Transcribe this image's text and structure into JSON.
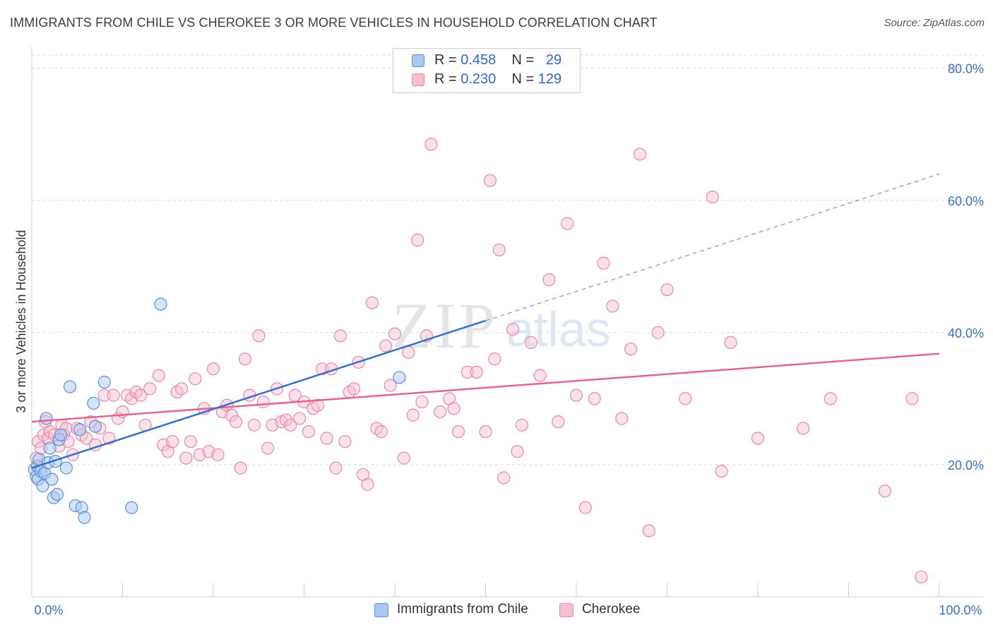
{
  "title": "IMMIGRANTS FROM CHILE VS CHEROKEE 3 OR MORE VEHICLES IN HOUSEHOLD CORRELATION CHART",
  "source": "Source: ZipAtlas.com",
  "watermark": {
    "zip": "ZIP",
    "atlas": "atlas"
  },
  "legend": {
    "r_label": "R =",
    "n_label": "N =",
    "rows": [
      {
        "r": "0.458",
        "n": "29"
      },
      {
        "r": "0.230",
        "n": "129"
      }
    ]
  },
  "colors": {
    "series1_fill": "#aac8f0",
    "series1_stroke": "#5b8fd6",
    "series1_line": "#3570cc",
    "series2_fill": "#f7bfd0",
    "series2_stroke": "#e88aa8",
    "series2_line": "#e0668e",
    "axis_value_text": "#3d6fc4",
    "grid": "#d8d8d8"
  },
  "chart_data": {
    "type": "scatter",
    "title": "IMMIGRANTS FROM CHILE VS CHEROKEE 3 OR MORE VEHICLES IN HOUSEHOLD CORRELATION CHART",
    "xlabel": "",
    "ylabel": "3 or more Vehicles in Household",
    "xlim": [
      0,
      100
    ],
    "ylim": [
      0,
      82
    ],
    "x_tick_labels": [
      "0.0%",
      "100.0%"
    ],
    "y_ticks": [
      20,
      40,
      60,
      80
    ],
    "y_tick_labels": [
      "20.0%",
      "40.0%",
      "60.0%",
      "80.0%"
    ],
    "grid": true,
    "legend_position": "top-center",
    "series": [
      {
        "name": "Immigrants from Chile",
        "r": 0.458,
        "n": 29,
        "trend": {
          "x0": 0,
          "y0": 19.5,
          "x1": 50,
          "y1": 41.8,
          "dashed_to_x": 100,
          "dashed_to_y": 64
        },
        "points": [
          [
            0.3,
            19.3
          ],
          [
            0.5,
            18.2
          ],
          [
            0.6,
            19.8
          ],
          [
            0.7,
            17.8
          ],
          [
            0.8,
            20.8
          ],
          [
            1.0,
            19.0
          ],
          [
            1.2,
            16.8
          ],
          [
            1.4,
            18.7
          ],
          [
            1.6,
            27.0
          ],
          [
            1.8,
            20.3
          ],
          [
            2.0,
            22.5
          ],
          [
            2.2,
            17.8
          ],
          [
            2.4,
            15.0
          ],
          [
            2.6,
            20.5
          ],
          [
            2.8,
            15.5
          ],
          [
            3.0,
            23.8
          ],
          [
            3.2,
            24.5
          ],
          [
            3.8,
            19.5
          ],
          [
            4.2,
            31.8
          ],
          [
            4.8,
            13.8
          ],
          [
            5.5,
            13.5
          ],
          [
            5.8,
            12.0
          ],
          [
            5.3,
            25.3
          ],
          [
            6.8,
            29.3
          ],
          [
            7.0,
            25.8
          ],
          [
            8.0,
            32.5
          ],
          [
            11.0,
            13.5
          ],
          [
            14.2,
            44.3
          ],
          [
            40.5,
            33.2
          ]
        ]
      },
      {
        "name": "Cherokee",
        "r": 0.23,
        "n": 129,
        "trend": {
          "x0": 0,
          "y0": 26.5,
          "x1": 100,
          "y1": 36.8
        },
        "points": [
          [
            0.5,
            21.0
          ],
          [
            0.7,
            23.5
          ],
          [
            0.9,
            19.5
          ],
          [
            1.0,
            22.5
          ],
          [
            1.3,
            24.5
          ],
          [
            1.5,
            26.5
          ],
          [
            1.8,
            24.0
          ],
          [
            2.0,
            25.0
          ],
          [
            2.5,
            24.5
          ],
          [
            3.0,
            22.8
          ],
          [
            3.3,
            26.0
          ],
          [
            3.5,
            24.5
          ],
          [
            3.8,
            25.5
          ],
          [
            4.0,
            23.5
          ],
          [
            4.5,
            21.5
          ],
          [
            5.0,
            25.5
          ],
          [
            5.5,
            24.5
          ],
          [
            6.0,
            24.0
          ],
          [
            6.5,
            26.5
          ],
          [
            7.0,
            23.0
          ],
          [
            7.5,
            25.5
          ],
          [
            8.0,
            30.5
          ],
          [
            8.5,
            24.0
          ],
          [
            9.0,
            30.5
          ],
          [
            9.5,
            27.0
          ],
          [
            10.0,
            28.0
          ],
          [
            10.5,
            30.5
          ],
          [
            11.0,
            30.0
          ],
          [
            11.5,
            31.0
          ],
          [
            12.0,
            30.5
          ],
          [
            12.5,
            26.0
          ],
          [
            13.0,
            31.5
          ],
          [
            14.0,
            33.5
          ],
          [
            14.5,
            23.0
          ],
          [
            15.0,
            22.0
          ],
          [
            15.5,
            23.5
          ],
          [
            16.0,
            31.0
          ],
          [
            16.5,
            31.5
          ],
          [
            17.0,
            21.0
          ],
          [
            17.5,
            23.5
          ],
          [
            18.0,
            33.0
          ],
          [
            18.5,
            21.5
          ],
          [
            19.0,
            28.5
          ],
          [
            19.5,
            22.0
          ],
          [
            20.0,
            34.5
          ],
          [
            20.5,
            21.5
          ],
          [
            21.0,
            28.0
          ],
          [
            21.5,
            29.0
          ],
          [
            22.0,
            27.5
          ],
          [
            22.5,
            26.5
          ],
          [
            23.0,
            19.5
          ],
          [
            23.5,
            36.0
          ],
          [
            24.0,
            30.5
          ],
          [
            24.5,
            26.0
          ],
          [
            25.0,
            39.5
          ],
          [
            25.5,
            29.5
          ],
          [
            26.0,
            22.5
          ],
          [
            26.5,
            26.0
          ],
          [
            27.0,
            31.5
          ],
          [
            27.5,
            26.5
          ],
          [
            28.0,
            26.8
          ],
          [
            28.5,
            26.0
          ],
          [
            29.0,
            30.5
          ],
          [
            29.5,
            27.0
          ],
          [
            30.0,
            29.5
          ],
          [
            30.5,
            25.0
          ],
          [
            31.0,
            28.5
          ],
          [
            31.5,
            29.0
          ],
          [
            32.0,
            34.5
          ],
          [
            32.5,
            24.0
          ],
          [
            33.0,
            34.5
          ],
          [
            33.5,
            19.5
          ],
          [
            34.0,
            39.5
          ],
          [
            34.5,
            23.5
          ],
          [
            35.0,
            31.0
          ],
          [
            35.5,
            31.5
          ],
          [
            36.0,
            35.5
          ],
          [
            36.5,
            18.5
          ],
          [
            37.0,
            17.0
          ],
          [
            37.5,
            44.5
          ],
          [
            38.0,
            25.5
          ],
          [
            38.5,
            25.0
          ],
          [
            39.0,
            38.0
          ],
          [
            39.5,
            32.0
          ],
          [
            40.0,
            39.8
          ],
          [
            41.0,
            21.0
          ],
          [
            41.5,
            37.0
          ],
          [
            42.0,
            27.5
          ],
          [
            42.5,
            54.0
          ],
          [
            43.0,
            29.5
          ],
          [
            43.5,
            39.5
          ],
          [
            44.0,
            68.5
          ],
          [
            45.0,
            28.0
          ],
          [
            46.0,
            30.0
          ],
          [
            46.5,
            28.5
          ],
          [
            47.0,
            25.0
          ],
          [
            48.0,
            34.0
          ],
          [
            49.0,
            34.0
          ],
          [
            50.0,
            25.0
          ],
          [
            50.5,
            63.0
          ],
          [
            51.0,
            36.0
          ],
          [
            51.5,
            52.5
          ],
          [
            52.0,
            18.0
          ],
          [
            53.0,
            40.5
          ],
          [
            53.5,
            22.0
          ],
          [
            54.0,
            26.0
          ],
          [
            55.0,
            38.5
          ],
          [
            56.0,
            33.5
          ],
          [
            57.0,
            48.0
          ],
          [
            58.0,
            26.5
          ],
          [
            59.0,
            56.5
          ],
          [
            60.0,
            30.5
          ],
          [
            61.0,
            13.5
          ],
          [
            62.0,
            30.0
          ],
          [
            63.0,
            50.5
          ],
          [
            64.0,
            44.0
          ],
          [
            65.0,
            27.0
          ],
          [
            66.0,
            37.5
          ],
          [
            67.0,
            67.0
          ],
          [
            68.0,
            10.0
          ],
          [
            69.0,
            40.0
          ],
          [
            70.0,
            46.5
          ],
          [
            72.0,
            30.0
          ],
          [
            75.0,
            60.5
          ],
          [
            76.0,
            19.0
          ],
          [
            77.0,
            38.5
          ],
          [
            80.0,
            24.0
          ],
          [
            85.0,
            25.5
          ],
          [
            88.0,
            30.0
          ],
          [
            94.0,
            16.0
          ],
          [
            97.0,
            30.0
          ],
          [
            98.0,
            3.0
          ]
        ]
      }
    ]
  }
}
